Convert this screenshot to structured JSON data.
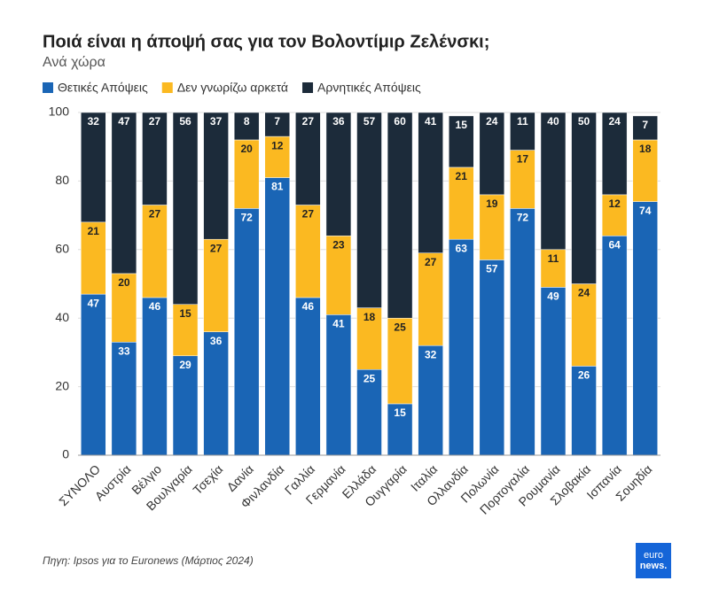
{
  "chart_data": {
    "type": "stacked-bar",
    "title": "Ποιά είναι η άποψή σας για τον Βολοντίμιρ Ζελένσκι;",
    "subtitle": "Ανά χώρα",
    "source": "Πηγη: Ipsos για το Euronews (Μάρτιος 2024)",
    "logo": [
      "euro",
      "news."
    ],
    "categories": [
      "ΣΥΝΟΛΟ",
      "Αυστρία",
      "Βέλγιο",
      "Βουλγαρία",
      "Τσεχία",
      "Δανία",
      "Φινλανδία",
      "Γαλλία",
      "Γερμανία",
      "Ελλάδα",
      "Ουγγαρία",
      "Ιταλία",
      "Ολλανδία",
      "Πολωνία",
      "Πορτογαλία",
      "Ρουμανία",
      "Σλοβακία",
      "Ισπανία",
      "Σουηδία"
    ],
    "series": [
      {
        "name": "Θετικές Απόψεις",
        "color": "#1a65b5",
        "values": [
          47,
          33,
          46,
          29,
          36,
          72,
          81,
          46,
          41,
          25,
          15,
          32,
          63,
          57,
          72,
          49,
          26,
          64,
          74
        ]
      },
      {
        "name": "Δεν γνωρίζω αρκετά",
        "color": "#fbb921",
        "values": [
          21,
          20,
          27,
          15,
          27,
          20,
          12,
          27,
          23,
          18,
          25,
          27,
          21,
          19,
          17,
          11,
          24,
          12,
          18
        ]
      },
      {
        "name": "Αρνητικές Απόψεις",
        "color": "#1c2b3a",
        "values": [
          32,
          47,
          27,
          56,
          37,
          8,
          7,
          27,
          36,
          57,
          60,
          41,
          15,
          24,
          11,
          40,
          50,
          24,
          7
        ]
      }
    ],
    "ylim": [
      0,
      100
    ],
    "yticks": [
      0,
      20,
      40,
      60,
      80,
      100
    ],
    "grid": true
  }
}
